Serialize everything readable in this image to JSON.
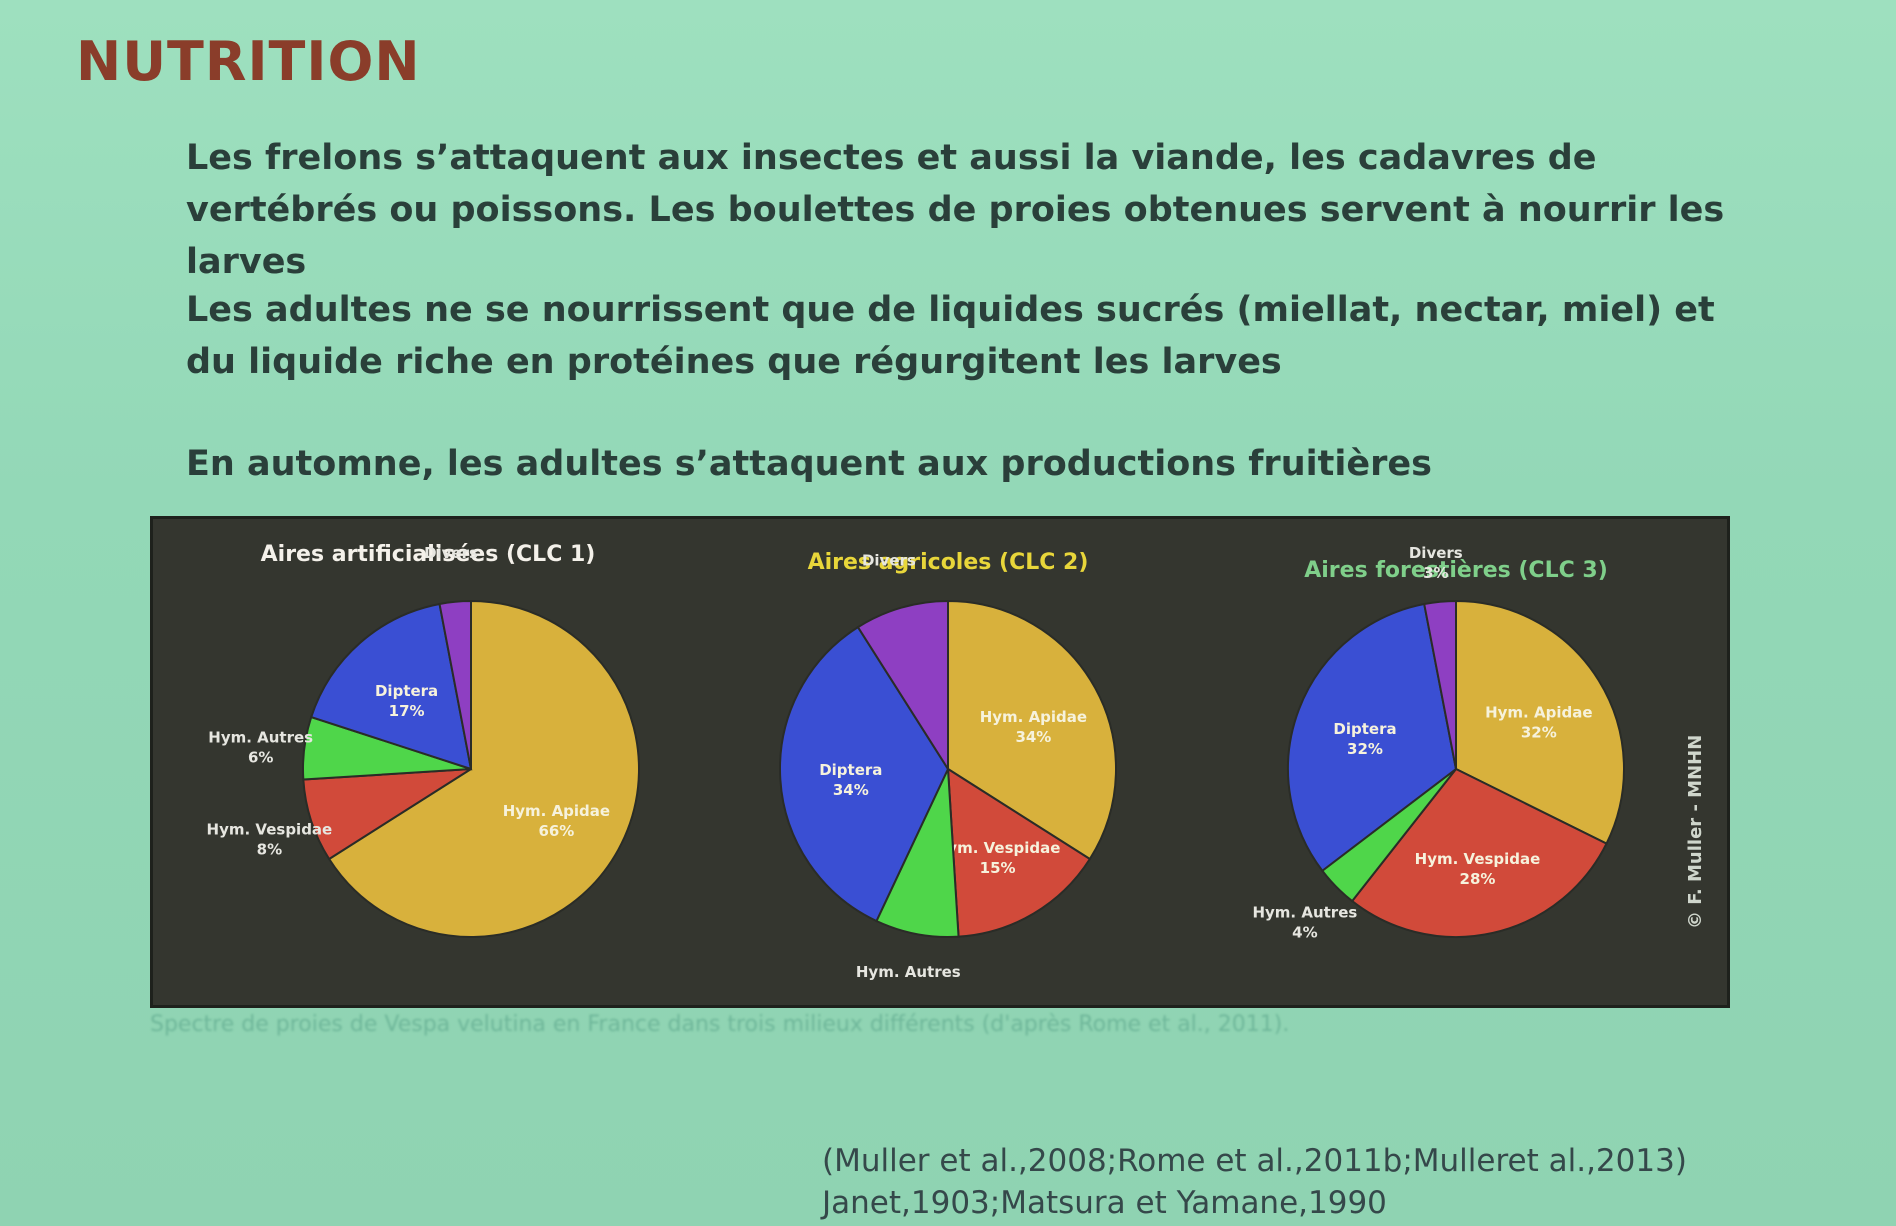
{
  "slide": {
    "title": "NUTRITION",
    "paragraphs": [
      "Les frelons s’attaquent aux insectes et aussi la viande, les cadavres de vertébrés ou poissons. Les boulettes de proies obtenues servent à nourrir les larves",
      "Les adultes ne se nourrissent que de liquides sucrés (miellat, nectar, miel) et du liquide riche en protéines que régurgitent les larves",
      "En automne, les adultes s’attaquent aux productions fruitières"
    ],
    "figure_caption": "Spectre de proies de Vespa velutina en France dans trois milieux différents (d'après Rome et al., 2011).",
    "figure_credit": "© F. Muller - MNHN",
    "references": [
      "(Muller et al.,2008;Rome et al.,2011b;Mulleret al.,2013)",
      "Janet,1903;Matsura et Yamane,1990"
    ]
  },
  "colors": {
    "apidae": "#d8b13c",
    "vespidae": "#d14a3a",
    "autres": "#4fd64a",
    "diptera": "#3a4fd3",
    "divers": "#8e3fc2",
    "title": "#8a3d2a"
  },
  "chart_data": [
    {
      "type": "pie",
      "title": "Aires artificialisées (CLC 1)",
      "labels": [
        "Hym. Apidae",
        "Hym. Vespidae",
        "Hym. Autres",
        "Diptera",
        "Divers"
      ],
      "values": [
        66,
        8,
        6,
        17,
        3
      ],
      "value_labels": [
        "66%",
        "8%",
        "6%",
        "17%",
        ""
      ],
      "colors": [
        "#d8b13c",
        "#d14a3a",
        "#4fd64a",
        "#3a4fd3",
        "#8e3fc2"
      ]
    },
    {
      "type": "pie",
      "title": "Aires agricoles (CLC 2)",
      "labels": [
        "Hym. Apidae",
        "Hym. Vespidae",
        "Hym. Autres",
        "Diptera",
        "Divers"
      ],
      "values": [
        34,
        15,
        8,
        34,
        9
      ],
      "value_labels": [
        "34%",
        "15%",
        "",
        "34%",
        ""
      ],
      "colors": [
        "#d8b13c",
        "#d14a3a",
        "#4fd64a",
        "#3a4fd3",
        "#8e3fc2"
      ]
    },
    {
      "type": "pie",
      "title": "Aires forestières (CLC 3)",
      "labels": [
        "Hym. Apidae",
        "Hym. Vespidae",
        "Hym. Autres",
        "Diptera",
        "Divers"
      ],
      "values": [
        32,
        28,
        4,
        32,
        3
      ],
      "value_labels": [
        "32%",
        "28%",
        "4%",
        "32%",
        "3%"
      ],
      "colors": [
        "#d8b13c",
        "#d14a3a",
        "#4fd64a",
        "#3a4fd3",
        "#8e3fc2"
      ]
    }
  ]
}
